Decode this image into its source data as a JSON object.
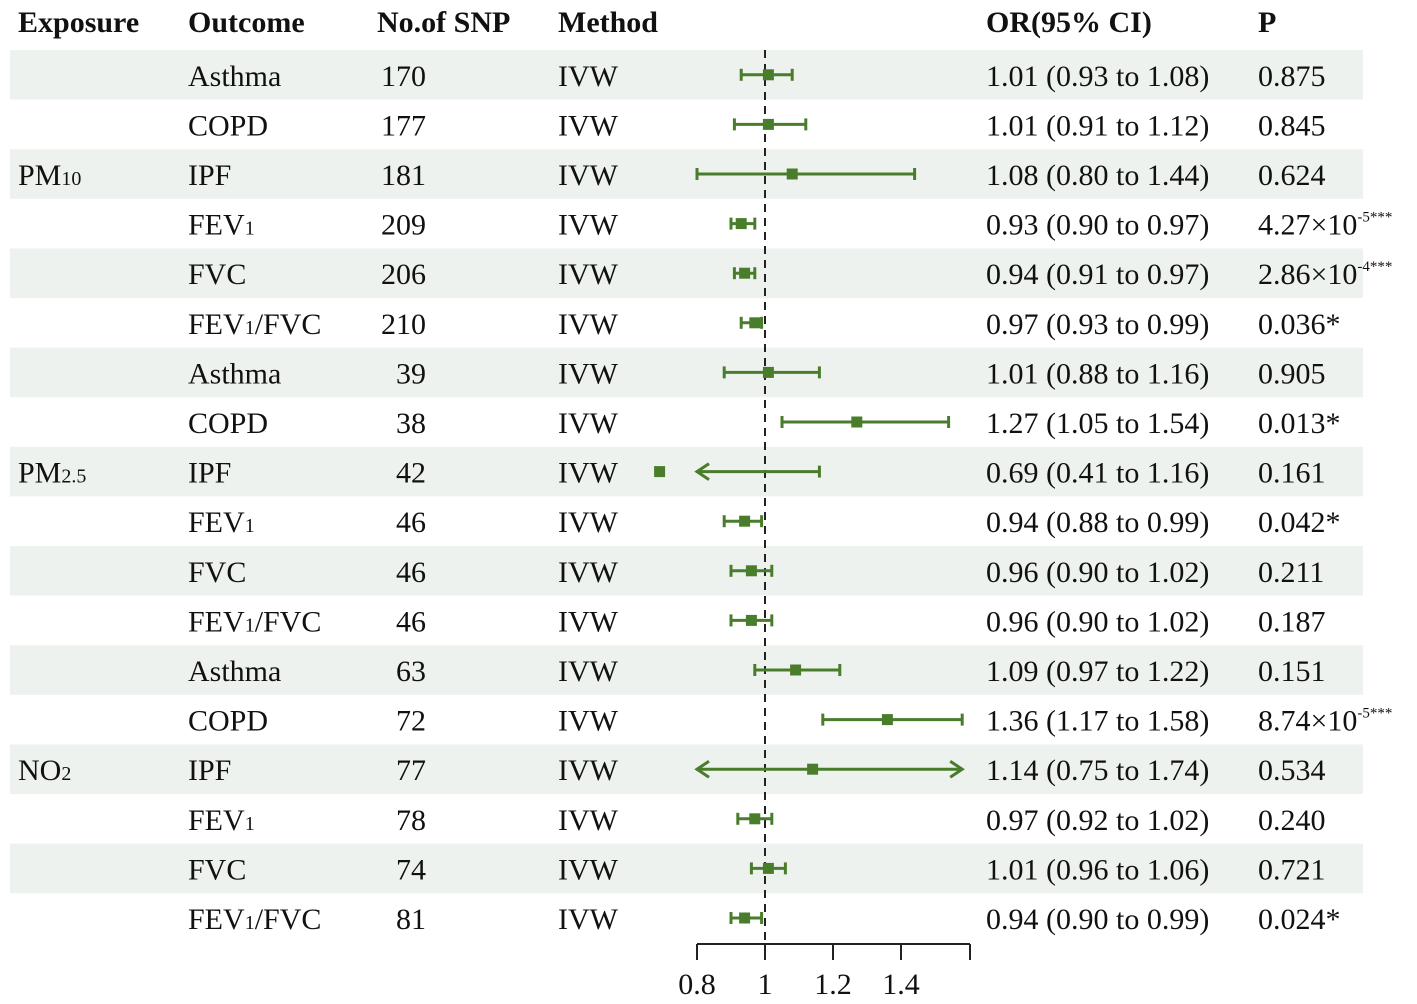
{
  "headers": {
    "exposure": "Exposure",
    "outcome": "Outcome",
    "nsnp": "No.of SNP",
    "method": "Method",
    "or": "OR(95% CI)",
    "p": "P"
  },
  "chart_data": {
    "type": "forest",
    "title": "",
    "xlabel": "",
    "reference_line": 1,
    "xlim": [
      0.8,
      1.58
    ],
    "xticks": [
      0.8,
      1,
      1.2,
      1.4
    ],
    "xtick_labels": [
      "0.8",
      "1",
      "1.2",
      "1.4"
    ],
    "colors": {
      "marker": "#4a7d2b",
      "stripe": "#eef2ee",
      "text": "#111111"
    },
    "groups": [
      {
        "exposure": "PM",
        "exposure_sub": "10",
        "label_row": 2
      },
      {
        "exposure": "PM",
        "exposure_sub": "2.5",
        "label_row": 8
      },
      {
        "exposure": "NO",
        "exposure_sub": "2",
        "label_row": 14
      }
    ],
    "rows": [
      {
        "outcome": "Asthma",
        "outcome_sub": "",
        "outcome_tail": "",
        "nsnp": "170",
        "method": "IVW",
        "or": 1.01,
        "lo": 0.93,
        "hi": 1.08,
        "or_text": "1.01 (0.93 to 1.08)",
        "p_text": "0.875",
        "p_exp": "",
        "p_stars": ""
      },
      {
        "outcome": "COPD",
        "outcome_sub": "",
        "outcome_tail": "",
        "nsnp": "177",
        "method": "IVW",
        "or": 1.01,
        "lo": 0.91,
        "hi": 1.12,
        "or_text": "1.01 (0.91 to 1.12)",
        "p_text": "0.845",
        "p_exp": "",
        "p_stars": ""
      },
      {
        "outcome": "IPF",
        "outcome_sub": "",
        "outcome_tail": "",
        "nsnp": "181",
        "method": "IVW",
        "or": 1.08,
        "lo": 0.8,
        "hi": 1.44,
        "or_text": "1.08 (0.80 to 1.44)",
        "p_text": "0.624",
        "p_exp": "",
        "p_stars": ""
      },
      {
        "outcome": "FEV",
        "outcome_sub": "1",
        "outcome_tail": "",
        "nsnp": "209",
        "method": "IVW",
        "or": 0.93,
        "lo": 0.9,
        "hi": 0.97,
        "or_text": "0.93 (0.90 to 0.97)",
        "p_text": "4.27×10",
        "p_exp": "-5",
        "p_stars": "***"
      },
      {
        "outcome": "FVC",
        "outcome_sub": "",
        "outcome_tail": "",
        "nsnp": "206",
        "method": "IVW",
        "or": 0.94,
        "lo": 0.91,
        "hi": 0.97,
        "or_text": "0.94 (0.91 to 0.97)",
        "p_text": "2.86×10",
        "p_exp": "-4",
        "p_stars": "***"
      },
      {
        "outcome": "FEV",
        "outcome_sub": "1",
        "outcome_tail": "/FVC",
        "nsnp": "210",
        "method": "IVW",
        "or": 0.97,
        "lo": 0.93,
        "hi": 0.99,
        "or_text": "0.97 (0.93 to 0.99)",
        "p_text": "0.036*",
        "p_exp": "",
        "p_stars": ""
      },
      {
        "outcome": "Asthma",
        "outcome_sub": "",
        "outcome_tail": "",
        "nsnp": "39",
        "method": "IVW",
        "or": 1.01,
        "lo": 0.88,
        "hi": 1.16,
        "or_text": "1.01 (0.88 to 1.16)",
        "p_text": "0.905",
        "p_exp": "",
        "p_stars": ""
      },
      {
        "outcome": "COPD",
        "outcome_sub": "",
        "outcome_tail": "",
        "nsnp": "38",
        "method": "IVW",
        "or": 1.27,
        "lo": 1.05,
        "hi": 1.54,
        "or_text": "1.27 (1.05 to 1.54)",
        "p_text": "0.013*",
        "p_exp": "",
        "p_stars": ""
      },
      {
        "outcome": "IPF",
        "outcome_sub": "",
        "outcome_tail": "",
        "nsnp": "42",
        "method": "IVW",
        "or": 0.69,
        "lo": 0.41,
        "hi": 1.16,
        "or_text": "0.69 (0.41 to 1.16)",
        "p_text": "0.161",
        "p_exp": "",
        "p_stars": ""
      },
      {
        "outcome": "FEV",
        "outcome_sub": "1",
        "outcome_tail": "",
        "nsnp": "46",
        "method": "IVW",
        "or": 0.94,
        "lo": 0.88,
        "hi": 0.99,
        "or_text": "0.94 (0.88 to 0.99)",
        "p_text": "0.042*",
        "p_exp": "",
        "p_stars": ""
      },
      {
        "outcome": "FVC",
        "outcome_sub": "",
        "outcome_tail": "",
        "nsnp": "46",
        "method": "IVW",
        "or": 0.96,
        "lo": 0.9,
        "hi": 1.02,
        "or_text": "0.96 (0.90 to 1.02)",
        "p_text": "0.211",
        "p_exp": "",
        "p_stars": ""
      },
      {
        "outcome": "FEV",
        "outcome_sub": "1",
        "outcome_tail": "/FVC",
        "nsnp": "46",
        "method": "IVW",
        "or": 0.96,
        "lo": 0.9,
        "hi": 1.02,
        "or_text": "0.96 (0.90 to 1.02)",
        "p_text": "0.187",
        "p_exp": "",
        "p_stars": ""
      },
      {
        "outcome": "Asthma",
        "outcome_sub": "",
        "outcome_tail": "",
        "nsnp": "63",
        "method": "IVW",
        "or": 1.09,
        "lo": 0.97,
        "hi": 1.22,
        "or_text": "1.09 (0.97 to 1.22)",
        "p_text": "0.151",
        "p_exp": "",
        "p_stars": ""
      },
      {
        "outcome": "COPD",
        "outcome_sub": "",
        "outcome_tail": "",
        "nsnp": "72",
        "method": "IVW",
        "or": 1.36,
        "lo": 1.17,
        "hi": 1.58,
        "or_text": "1.36 (1.17 to 1.58)",
        "p_text": "8.74×10",
        "p_exp": "-5",
        "p_stars": "***"
      },
      {
        "outcome": "IPF",
        "outcome_sub": "",
        "outcome_tail": "",
        "nsnp": "77",
        "method": "IVW",
        "or": 1.14,
        "lo": 0.75,
        "hi": 1.74,
        "or_text": "1.14 (0.75 to 1.74)",
        "p_text": "0.534",
        "p_exp": "",
        "p_stars": ""
      },
      {
        "outcome": "FEV",
        "outcome_sub": "1",
        "outcome_tail": "",
        "nsnp": "78",
        "method": "IVW",
        "or": 0.97,
        "lo": 0.92,
        "hi": 1.02,
        "or_text": "0.97 (0.92 to 1.02)",
        "p_text": "0.240",
        "p_exp": "",
        "p_stars": ""
      },
      {
        "outcome": "FVC",
        "outcome_sub": "",
        "outcome_tail": "",
        "nsnp": "74",
        "method": "IVW",
        "or": 1.01,
        "lo": 0.96,
        "hi": 1.06,
        "or_text": "1.01 (0.96 to 1.06)",
        "p_text": "0.721",
        "p_exp": "",
        "p_stars": ""
      },
      {
        "outcome": "FEV",
        "outcome_sub": "1",
        "outcome_tail": "/FVC",
        "nsnp": "81",
        "method": "IVW",
        "or": 0.94,
        "lo": 0.9,
        "hi": 0.99,
        "or_text": "0.94 (0.90 to 0.99)",
        "p_text": "0.024*",
        "p_exp": "",
        "p_stars": ""
      }
    ]
  }
}
